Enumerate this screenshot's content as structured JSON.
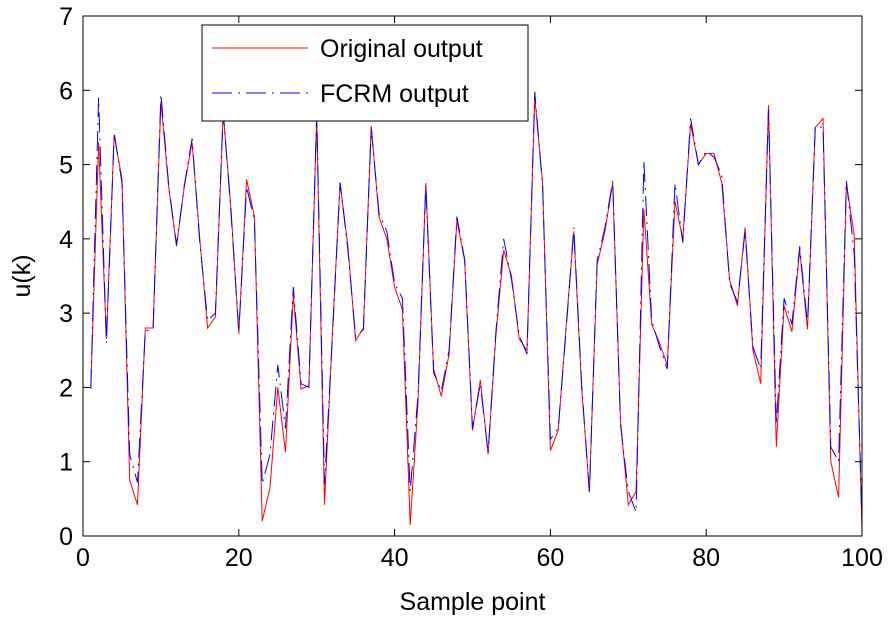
{
  "chart_data": {
    "type": "line",
    "title": "",
    "xlabel": "Sample point",
    "ylabel": "u(k)",
    "xlim": [
      0,
      100
    ],
    "ylim": [
      0,
      7
    ],
    "xticks": [
      0,
      20,
      40,
      60,
      80,
      100
    ],
    "yticks": [
      0,
      1,
      2,
      3,
      4,
      5,
      6,
      7
    ],
    "grid": false,
    "legend": {
      "position": "top-left"
    },
    "x": [
      1,
      2,
      3,
      4,
      5,
      6,
      7,
      8,
      9,
      10,
      11,
      12,
      13,
      14,
      15,
      16,
      17,
      18,
      19,
      20,
      21,
      22,
      23,
      24,
      25,
      26,
      27,
      28,
      29,
      30,
      31,
      32,
      33,
      34,
      35,
      36,
      37,
      38,
      39,
      40,
      41,
      42,
      43,
      44,
      45,
      46,
      47,
      48,
      49,
      50,
      51,
      52,
      53,
      54,
      55,
      56,
      57,
      58,
      59,
      60,
      61,
      62,
      63,
      64,
      65,
      66,
      67,
      68,
      69,
      70,
      71,
      72,
      73,
      74,
      75,
      76,
      77,
      78,
      79,
      80,
      81,
      82,
      83,
      84,
      85,
      86,
      87,
      88,
      89,
      90,
      91,
      92,
      93,
      94,
      95,
      96,
      97,
      98,
      99,
      100
    ],
    "series": [
      {
        "name": "Original output",
        "color": "#ff0000",
        "style": "solid",
        "values": [
          2.0,
          5.3,
          2.65,
          5.4,
          4.8,
          0.75,
          0.42,
          2.8,
          2.8,
          5.85,
          4.7,
          3.9,
          4.7,
          5.3,
          4.0,
          2.8,
          2.95,
          5.7,
          4.4,
          2.72,
          4.8,
          4.3,
          0.2,
          0.65,
          2.0,
          1.13,
          3.25,
          1.98,
          2.02,
          5.65,
          0.42,
          2.7,
          4.75,
          3.9,
          2.63,
          2.8,
          5.52,
          4.3,
          4.0,
          3.35,
          3.05,
          0.15,
          1.8,
          4.75,
          2.25,
          1.88,
          2.45,
          4.25,
          3.7,
          1.42,
          2.1,
          1.1,
          2.7,
          3.85,
          3.5,
          2.65,
          2.5,
          5.9,
          4.75,
          1.15,
          1.42,
          2.8,
          4.1,
          2.0,
          0.6,
          3.65,
          4.1,
          4.75,
          1.55,
          0.42,
          0.6,
          4.4,
          2.85,
          2.6,
          2.3,
          4.5,
          4.0,
          5.55,
          5.0,
          5.15,
          5.15,
          4.75,
          3.45,
          3.1,
          4.15,
          2.5,
          2.05,
          5.8,
          1.2,
          3.1,
          2.75,
          3.85,
          2.78,
          5.5,
          5.62,
          1.0,
          0.52,
          4.75,
          4.05,
          0.05
        ]
      },
      {
        "name": "FCRM output",
        "color": "#0000ff",
        "style": "dashdot",
        "values": [
          1.98,
          5.9,
          2.6,
          5.42,
          4.75,
          1.1,
          0.72,
          2.76,
          2.78,
          5.95,
          4.72,
          3.92,
          4.72,
          5.35,
          3.95,
          2.9,
          3.0,
          5.72,
          4.35,
          2.75,
          4.7,
          4.25,
          0.7,
          1.1,
          2.3,
          1.45,
          3.35,
          2.05,
          2.0,
          5.7,
          0.7,
          2.65,
          4.76,
          3.85,
          2.68,
          2.78,
          5.48,
          4.35,
          4.1,
          3.4,
          3.2,
          0.6,
          1.9,
          4.72,
          2.2,
          1.95,
          2.5,
          4.3,
          3.72,
          1.45,
          2.05,
          1.12,
          2.75,
          4.0,
          3.45,
          2.7,
          2.45,
          5.98,
          4.7,
          1.3,
          1.45,
          2.75,
          4.15,
          2.05,
          0.58,
          3.7,
          4.15,
          4.78,
          1.5,
          0.6,
          0.32,
          5.05,
          2.9,
          2.55,
          2.25,
          4.75,
          3.95,
          5.62,
          5.0,
          5.18,
          5.1,
          4.85,
          3.4,
          3.15,
          4.1,
          2.55,
          2.25,
          5.75,
          1.5,
          3.2,
          2.85,
          3.9,
          2.85,
          5.52,
          5.5,
          1.2,
          1.0,
          4.78,
          3.8,
          0.2
        ]
      }
    ]
  }
}
